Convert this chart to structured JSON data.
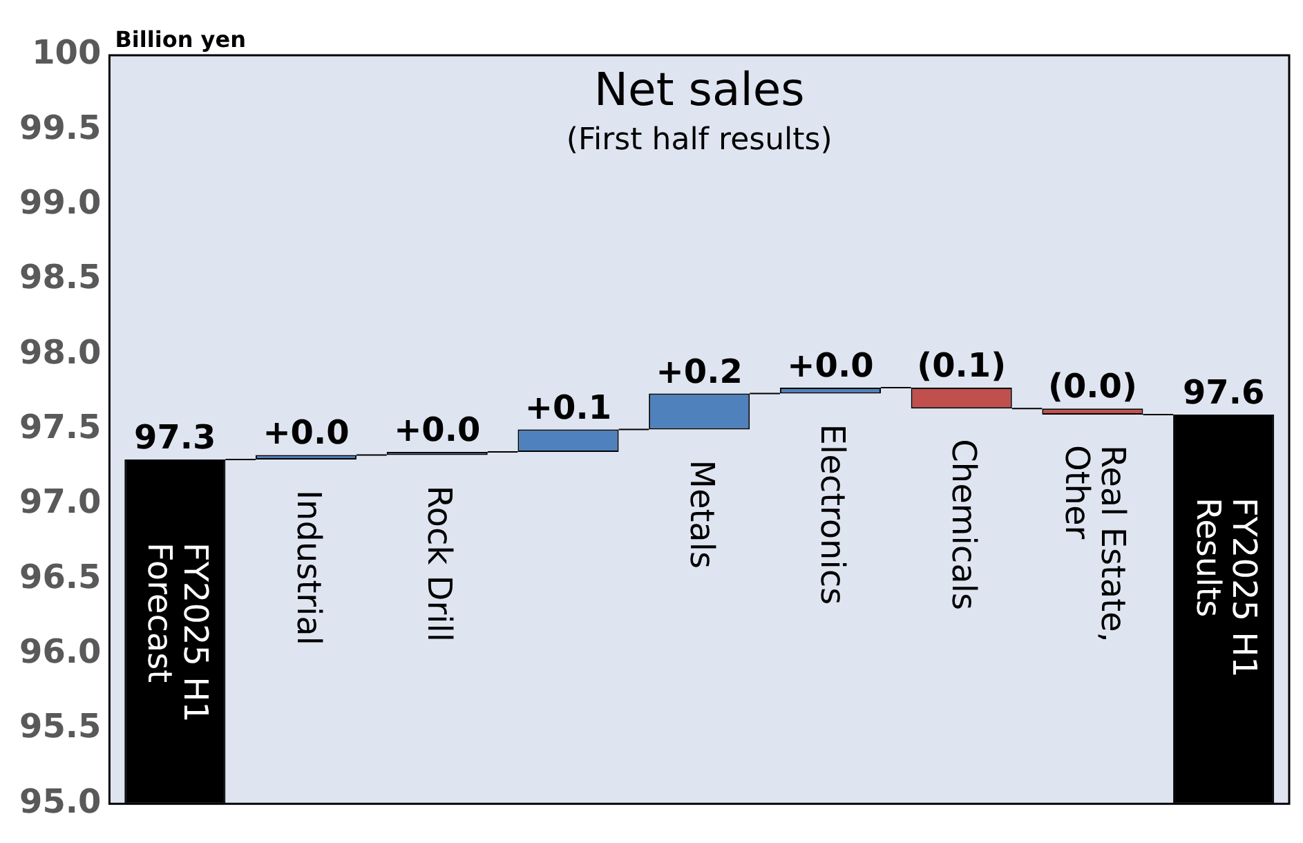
{
  "chart_data": {
    "type": "bar",
    "title": "Net sales",
    "subtitle": "(First half results)",
    "ylabel": "Billion yen",
    "categories": [
      "FY2025 H1 Forecast",
      "Industrial",
      "Rock Drill",
      null,
      "Metals",
      "Electronics",
      "Chemicals",
      "Real Estate, Other",
      "FY2025 H1 Results"
    ],
    "values": [
      97.3,
      0.03,
      0.02,
      0.15,
      0.24,
      0.04,
      -0.14,
      -0.04,
      97.6
    ],
    "base": [
      null,
      97.3,
      97.33,
      97.35,
      97.5,
      97.74,
      97.78,
      97.64,
      null
    ],
    "colors": [
      "#000000",
      "#4f81bd",
      "#4f81bd",
      "#4f81bd",
      "#4f81bd",
      "#4f81bd",
      "#c0504d",
      "#c0504d",
      "#000000"
    ],
    "value_labels": [
      "97.3",
      "+0.0",
      "+0.0",
      "+0.1",
      "+0.2",
      "+0.0",
      "(0.1)",
      "(0.0)",
      "97.6"
    ],
    "ylim": [
      95,
      100
    ],
    "yticks": [
      {
        "value": 95,
        "label": "95.0"
      },
      {
        "value": 95.5,
        "label": "95.5"
      },
      {
        "value": 96,
        "label": "96.0"
      },
      {
        "value": 96.5,
        "label": "96.5"
      },
      {
        "value": 97,
        "label": "97.0"
      },
      {
        "value": 97.5,
        "label": "97.5"
      },
      {
        "value": 98,
        "label": "98.0"
      },
      {
        "value": 98.5,
        "label": "98.5"
      },
      {
        "value": 99,
        "label": "99.0"
      },
      {
        "value": 99.5,
        "label": "99.5"
      },
      100
    ],
    "grid": false,
    "legend": false
  }
}
